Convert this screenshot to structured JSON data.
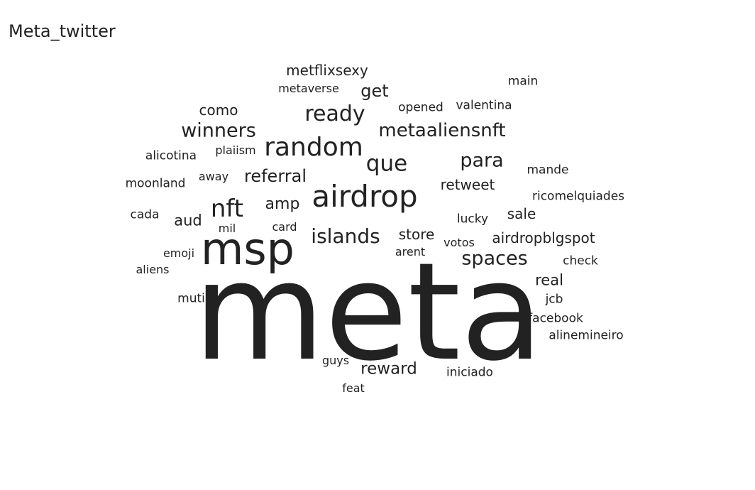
{
  "chart_data": {
    "type": "wordcloud",
    "title": "Meta_twitter",
    "color": "#222222",
    "words": [
      {
        "text": "meta",
        "weight": 100
      },
      {
        "text": "msp",
        "weight": 32
      },
      {
        "text": "airdrop",
        "weight": 26
      },
      {
        "text": "random",
        "weight": 20
      },
      {
        "text": "nft",
        "weight": 19
      },
      {
        "text": "islands",
        "weight": 18
      },
      {
        "text": "ready",
        "weight": 18
      },
      {
        "text": "que",
        "weight": 18
      },
      {
        "text": "winners",
        "weight": 17
      },
      {
        "text": "metaaliensnft",
        "weight": 17
      },
      {
        "text": "spaces",
        "weight": 17
      },
      {
        "text": "para",
        "weight": 17
      },
      {
        "text": "referral",
        "weight": 15
      },
      {
        "text": "reward",
        "weight": 15
      },
      {
        "text": "amp",
        "weight": 15
      },
      {
        "text": "get",
        "weight": 15
      },
      {
        "text": "aud",
        "weight": 13
      },
      {
        "text": "store",
        "weight": 13
      },
      {
        "text": "real",
        "weight": 13
      },
      {
        "text": "metflixsexy",
        "weight": 13
      },
      {
        "text": "retweet",
        "weight": 13
      },
      {
        "text": "airdropblgspot",
        "weight": 13
      },
      {
        "text": "sale",
        "weight": 13
      },
      {
        "text": "como",
        "weight": 12
      },
      {
        "text": "opened",
        "weight": 11
      },
      {
        "text": "valentina",
        "weight": 11
      },
      {
        "text": "main",
        "weight": 11
      },
      {
        "text": "metaverse",
        "weight": 11
      },
      {
        "text": "mande",
        "weight": 11
      },
      {
        "text": "ricomelquiades",
        "weight": 11
      },
      {
        "text": "moonland",
        "weight": 11
      },
      {
        "text": "alicotina",
        "weight": 11
      },
      {
        "text": "plaiism",
        "weight": 11
      },
      {
        "text": "away",
        "weight": 11
      },
      {
        "text": "cada",
        "weight": 11
      },
      {
        "text": "mil",
        "weight": 11
      },
      {
        "text": "card",
        "weight": 11
      },
      {
        "text": "lucky",
        "weight": 11
      },
      {
        "text": "votos",
        "weight": 11
      },
      {
        "text": "arent",
        "weight": 11
      },
      {
        "text": "emoji",
        "weight": 11
      },
      {
        "text": "aliens",
        "weight": 11
      },
      {
        "text": "check",
        "weight": 11
      },
      {
        "text": "mutir",
        "weight": 11
      },
      {
        "text": "jcb",
        "weight": 11
      },
      {
        "text": "facebook",
        "weight": 11
      },
      {
        "text": "alinemineiro",
        "weight": 11
      },
      {
        "text": "guys",
        "weight": 11
      },
      {
        "text": "iniciado",
        "weight": 11
      },
      {
        "text": "feat",
        "weight": 11
      }
    ]
  }
}
